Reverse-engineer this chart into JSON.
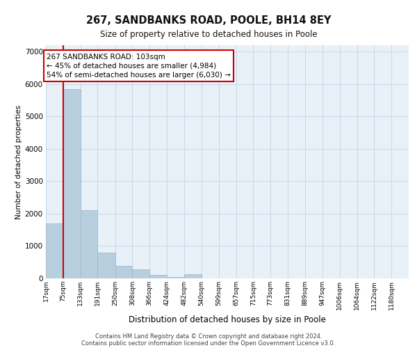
{
  "title1": "267, SANDBANKS ROAD, POOLE, BH14 8EY",
  "title2": "Size of property relative to detached houses in Poole",
  "xlabel": "Distribution of detached houses by size in Poole",
  "ylabel": "Number of detached properties",
  "bar_labels": [
    "17sqm",
    "75sqm",
    "133sqm",
    "191sqm",
    "250sqm",
    "308sqm",
    "366sqm",
    "424sqm",
    "482sqm",
    "540sqm",
    "599sqm",
    "657sqm",
    "715sqm",
    "773sqm",
    "831sqm",
    "889sqm",
    "947sqm",
    "1006sqm",
    "1064sqm",
    "1122sqm",
    "1180sqm"
  ],
  "bar_values": [
    1700,
    5850,
    2100,
    800,
    380,
    270,
    100,
    45,
    130,
    0,
    0,
    0,
    0,
    0,
    0,
    0,
    0,
    0,
    0,
    0,
    0
  ],
  "bar_color": "#b8cfe0",
  "bar_edge_color": "#9ab5cb",
  "grid_color": "#c8d8e8",
  "background_color": "#e8f0f8",
  "property_line_x": 75,
  "annotation_text": "267 SANDBANKS ROAD: 103sqm\n← 45% of detached houses are smaller (4,984)\n54% of semi-detached houses are larger (6,030) →",
  "annotation_box_facecolor": "#ffffff",
  "annotation_box_edgecolor": "#cc0000",
  "ylim": [
    0,
    7200
  ],
  "yticks": [
    0,
    1000,
    2000,
    3000,
    4000,
    5000,
    6000,
    7000
  ],
  "bin_edges": [
    17,
    75,
    133,
    191,
    250,
    308,
    366,
    424,
    482,
    540,
    599,
    657,
    715,
    773,
    831,
    889,
    947,
    1006,
    1064,
    1122,
    1180,
    1238
  ],
  "footer1": "Contains HM Land Registry data © Crown copyright and database right 2024.",
  "footer2": "Contains public sector information licensed under the Open Government Licence v3.0."
}
